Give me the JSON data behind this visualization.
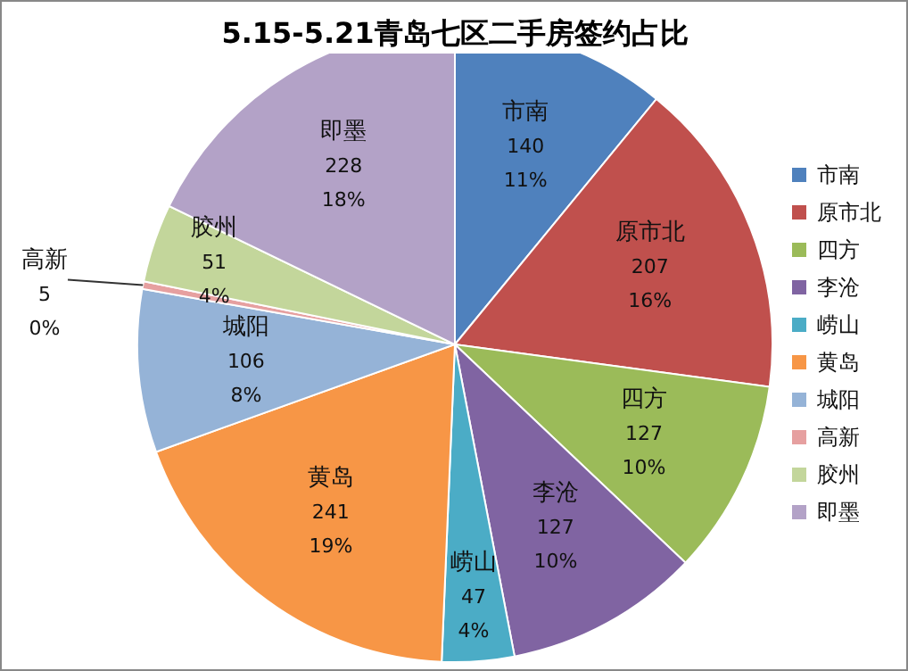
{
  "chart_data": {
    "type": "pie",
    "title": "5.15-5.21青岛七区二手房签约占比",
    "categories": [
      "市南",
      "原市北",
      "四方",
      "李沧",
      "崂山",
      "黄岛",
      "城阳",
      "高新",
      "胶州",
      "即墨"
    ],
    "values": [
      140,
      207,
      127,
      127,
      47,
      241,
      106,
      5,
      51,
      228
    ],
    "value_labels": [
      "140\n11%",
      "207\n16%",
      "127\n10%",
      "127\n10%",
      "47\n4%",
      "241\n19%",
      "106\n8%",
      "5\n0%",
      "51\n4%",
      "228\n18%"
    ],
    "colors": [
      "#4f81bd",
      "#c0504d",
      "#9bbb59",
      "#8064a2",
      "#4bacc6",
      "#f79646",
      "#95b3d7",
      "#e6a0a0",
      "#c3d69b",
      "#b3a2c7"
    ],
    "legend": "right"
  }
}
